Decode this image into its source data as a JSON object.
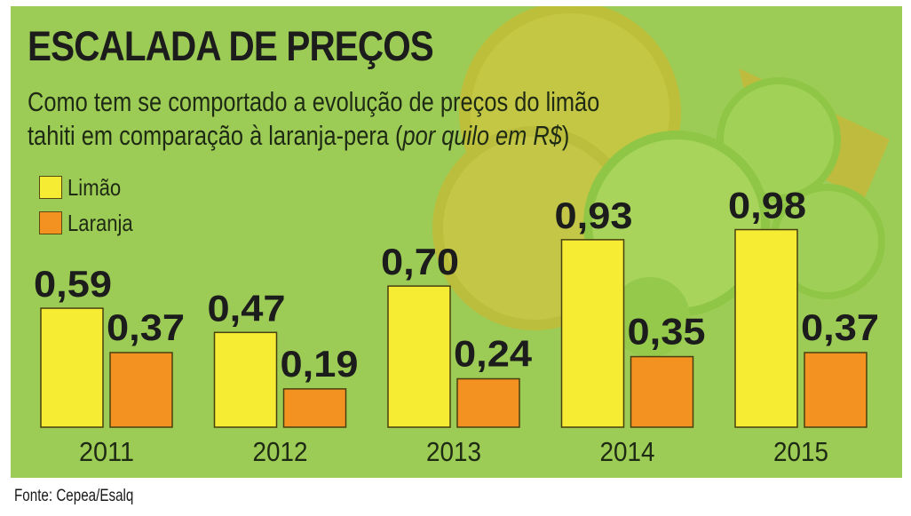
{
  "header": {
    "title": "ESCALADA DE PREÇOS",
    "subtitle_line1": "Como tem se comportado a evolução de preços do limão",
    "subtitle_line2_prefix": "tahiti em comparação à laranja-pera (",
    "subtitle_line2_italic": "por quilo em R$",
    "subtitle_line2_suffix": ")"
  },
  "colors": {
    "background": "#9ccc55",
    "limao": "#f5ec33",
    "laranja": "#f39220",
    "bar_border": "#4a3f10",
    "text": "#1c1c1c"
  },
  "legend": [
    {
      "label": "Limão",
      "color": "#f5ec33"
    },
    {
      "label": "Laranja",
      "color": "#f39220"
    }
  ],
  "footer": {
    "source": "Fonte: Cepea/Esalq"
  },
  "chart_data": {
    "type": "bar",
    "title": "ESCALADA DE PREÇOS",
    "subtitle": "Como tem se comportado a evolução de preços do limão tahiti em comparação à laranja-pera (por quilo em R$)",
    "xlabel": "",
    "ylabel": "R$ por quilo",
    "categories": [
      "2011",
      "2012",
      "2013",
      "2014",
      "2015"
    ],
    "series": [
      {
        "name": "Limão",
        "color": "#f5ec33",
        "values": [
          0.59,
          0.47,
          0.7,
          0.93,
          0.98
        ],
        "labels": [
          "0,59",
          "0,47",
          "0,70",
          "0,93",
          "0,98"
        ]
      },
      {
        "name": "Laranja",
        "color": "#f39220",
        "values": [
          0.37,
          0.19,
          0.24,
          0.35,
          0.37
        ],
        "labels": [
          "0,37",
          "0,19",
          "0,24",
          "0,35",
          "0,37"
        ]
      }
    ],
    "ylim": [
      0,
      1.0
    ],
    "grid": false,
    "legend_position": "top-left",
    "source": "Fonte: Cepea/Esalq"
  }
}
